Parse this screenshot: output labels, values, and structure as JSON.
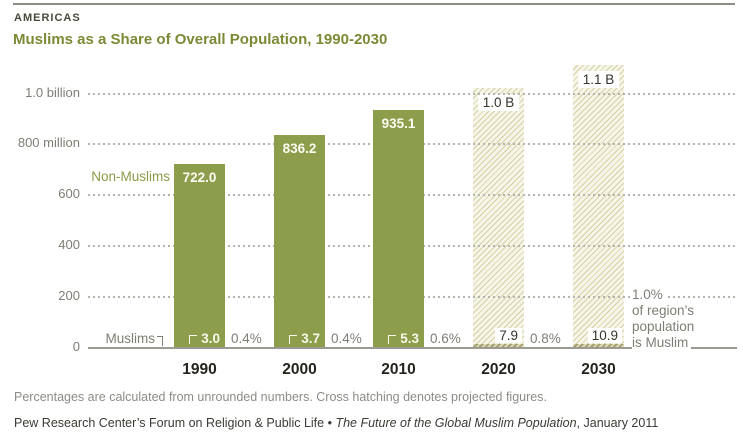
{
  "header": {
    "kicker": "AMERICAS",
    "title": "Muslims as a Share of Overall Population, 1990-2030"
  },
  "appearance": {
    "bar_solid_color": "#8c9d4b",
    "hatch_bg_color": "#f6f5e7",
    "hatch_line_color": "#d2d2a6",
    "title_color": "#7c8a36",
    "gray_text_color": "#7e7e76",
    "year_text_color": "#24241e"
  },
  "y_axis": {
    "ticks": [
      {
        "label": "1.0 billion",
        "value_millions": 1000
      },
      {
        "label": "800 million",
        "value_millions": 800
      },
      {
        "label": "600",
        "value_millions": 600
      },
      {
        "label": "400",
        "value_millions": 400
      },
      {
        "label": "200",
        "value_millions": 200
      },
      {
        "label": "0",
        "value_millions": 0
      }
    ]
  },
  "series_labels": {
    "non_muslims": "Non-Muslims",
    "muslims": "Muslims"
  },
  "chart_data": {
    "type": "bar",
    "title": "Muslims as a Share of Overall Population, 1990-2030",
    "region": "AMERICAS",
    "unit": "millions of people",
    "grid": "dotted horizontal",
    "ylim": [
      0,
      1150
    ],
    "categories": [
      "1990",
      "2000",
      "2010",
      "2020",
      "2030"
    ],
    "bars": [
      {
        "year": "1990",
        "total_label": "722.0",
        "total_millions": 722.0,
        "muslim_label": "3.0",
        "muslim_millions": 3.0,
        "pct_label": "0.4%",
        "projected": false
      },
      {
        "year": "2000",
        "total_label": "836.2",
        "total_millions": 836.2,
        "muslim_label": "3.7",
        "muslim_millions": 3.7,
        "pct_label": "0.4%",
        "projected": false
      },
      {
        "year": "2010",
        "total_label": "935.1",
        "total_millions": 935.1,
        "muslim_label": "5.3",
        "muslim_millions": 5.3,
        "pct_label": "0.6%",
        "projected": false
      },
      {
        "year": "2020",
        "total_label": "1.0 B",
        "total_millions": 1020,
        "muslim_label": "7.9",
        "muslim_millions": 7.9,
        "pct_label": "0.8%",
        "projected": true
      },
      {
        "year": "2030",
        "total_label": "1.1 B",
        "total_millions": 1110,
        "muslim_label": "10.9",
        "muslim_millions": 10.9,
        "pct_label": "1.0%",
        "projected": true
      }
    ],
    "annotation": {
      "line1": "1.0%",
      "line2": "of region’s",
      "line3": "population",
      "line4": "is Muslim"
    }
  },
  "footer": {
    "note": "Percentages are calculated from unrounded numbers. Cross hatching denotes projected figures.",
    "source_prefix": "Pew Research Center’s Forum on Religion & Public Life • ",
    "source_italic": "The Future of the Global Muslim Population",
    "source_suffix": ", January 2011"
  }
}
